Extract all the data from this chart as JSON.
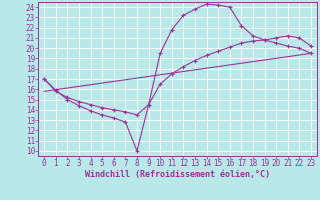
{
  "background_color": "#b8e8e8",
  "grid_color": "#ffffff",
  "line_color": "#993399",
  "xlabel": "Windchill (Refroidissement éolien,°C)",
  "xlim": [
    -0.5,
    23.5
  ],
  "ylim": [
    9.5,
    24.5
  ],
  "yticks": [
    10,
    11,
    12,
    13,
    14,
    15,
    16,
    17,
    18,
    19,
    20,
    21,
    22,
    23,
    24
  ],
  "xticks": [
    0,
    1,
    2,
    3,
    4,
    5,
    6,
    7,
    8,
    9,
    10,
    11,
    12,
    13,
    14,
    15,
    16,
    17,
    18,
    19,
    20,
    21,
    22,
    23
  ],
  "line1_x": [
    0,
    1,
    2,
    3,
    4,
    5,
    6,
    7,
    8,
    9,
    10,
    11,
    12,
    13,
    14,
    15,
    16,
    17,
    18,
    19,
    20,
    21,
    22,
    23
  ],
  "line1_y": [
    17.0,
    15.9,
    15.0,
    14.4,
    13.9,
    13.5,
    13.2,
    12.8,
    10.0,
    14.5,
    19.5,
    21.8,
    23.2,
    23.8,
    24.3,
    24.2,
    24.0,
    22.2,
    21.2,
    20.8,
    20.5,
    20.2,
    20.0,
    19.5
  ],
  "line2_x": [
    0,
    1,
    2,
    3,
    4,
    5,
    6,
    7,
    8,
    9,
    10,
    11,
    12,
    13,
    14,
    15,
    16,
    17,
    18,
    19,
    20,
    21,
    22,
    23
  ],
  "line2_y": [
    17.0,
    15.8,
    15.2,
    14.8,
    14.5,
    14.2,
    14.0,
    13.8,
    13.5,
    14.5,
    16.5,
    17.5,
    18.2,
    18.8,
    19.3,
    19.7,
    20.1,
    20.5,
    20.7,
    20.8,
    21.0,
    21.2,
    21.0,
    20.2
  ],
  "line3_x": [
    0,
    23
  ],
  "line3_y": [
    15.8,
    19.5
  ],
  "tick_fontsize": 5.5,
  "xlabel_fontsize": 6.0
}
